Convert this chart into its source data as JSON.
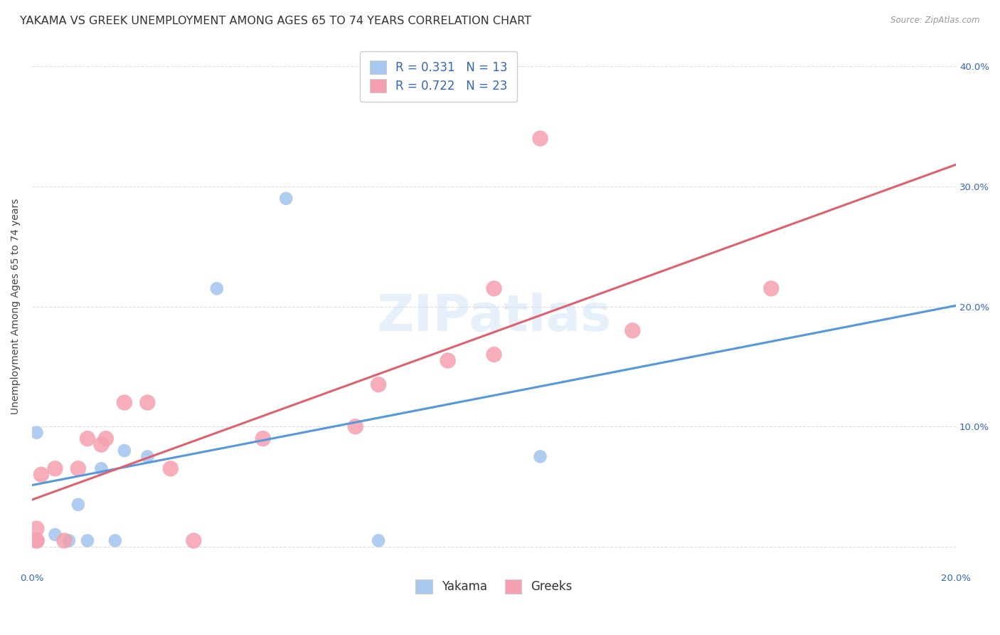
{
  "title": "YAKAMA VS GREEK UNEMPLOYMENT AMONG AGES 65 TO 74 YEARS CORRELATION CHART",
  "source": "Source: ZipAtlas.com",
  "ylabel": "Unemployment Among Ages 65 to 74 years",
  "xlim": [
    0.0,
    0.2
  ],
  "ylim": [
    -0.02,
    0.42
  ],
  "plot_ylim": [
    0.0,
    0.4
  ],
  "yakama_color": "#a8c8f0",
  "greeks_color": "#f5a0b0",
  "yakama_line_color": "#5599dd",
  "greeks_line_color": "#e06070",
  "dashed_line_color": "#bbbbbb",
  "background_color": "#ffffff",
  "grid_color": "#dddddd",
  "watermark": "ZIPatlas",
  "watermark_color": "#c8dff5",
  "watermark_alpha": 0.45,
  "title_fontsize": 11.5,
  "axis_label_fontsize": 10,
  "tick_fontsize": 9.5,
  "legend_fontsize": 12,
  "yakama_scatter_x": [
    0.001,
    0.005,
    0.008,
    0.01,
    0.012,
    0.015,
    0.018,
    0.02,
    0.025,
    0.04,
    0.055,
    0.075,
    0.11
  ],
  "yakama_scatter_y": [
    0.095,
    0.01,
    0.005,
    0.035,
    0.005,
    0.065,
    0.005,
    0.08,
    0.075,
    0.215,
    0.29,
    0.005,
    0.075
  ],
  "greeks_scatter_x": [
    0.001,
    0.001,
    0.001,
    0.002,
    0.005,
    0.007,
    0.01,
    0.012,
    0.015,
    0.016,
    0.02,
    0.025,
    0.03,
    0.035,
    0.05,
    0.07,
    0.075,
    0.09,
    0.1,
    0.1,
    0.11,
    0.13,
    0.16
  ],
  "greeks_scatter_y": [
    0.005,
    0.005,
    0.015,
    0.06,
    0.065,
    0.005,
    0.065,
    0.09,
    0.085,
    0.09,
    0.12,
    0.12,
    0.065,
    0.005,
    0.09,
    0.1,
    0.135,
    0.155,
    0.16,
    0.215,
    0.34,
    0.18,
    0.215
  ]
}
